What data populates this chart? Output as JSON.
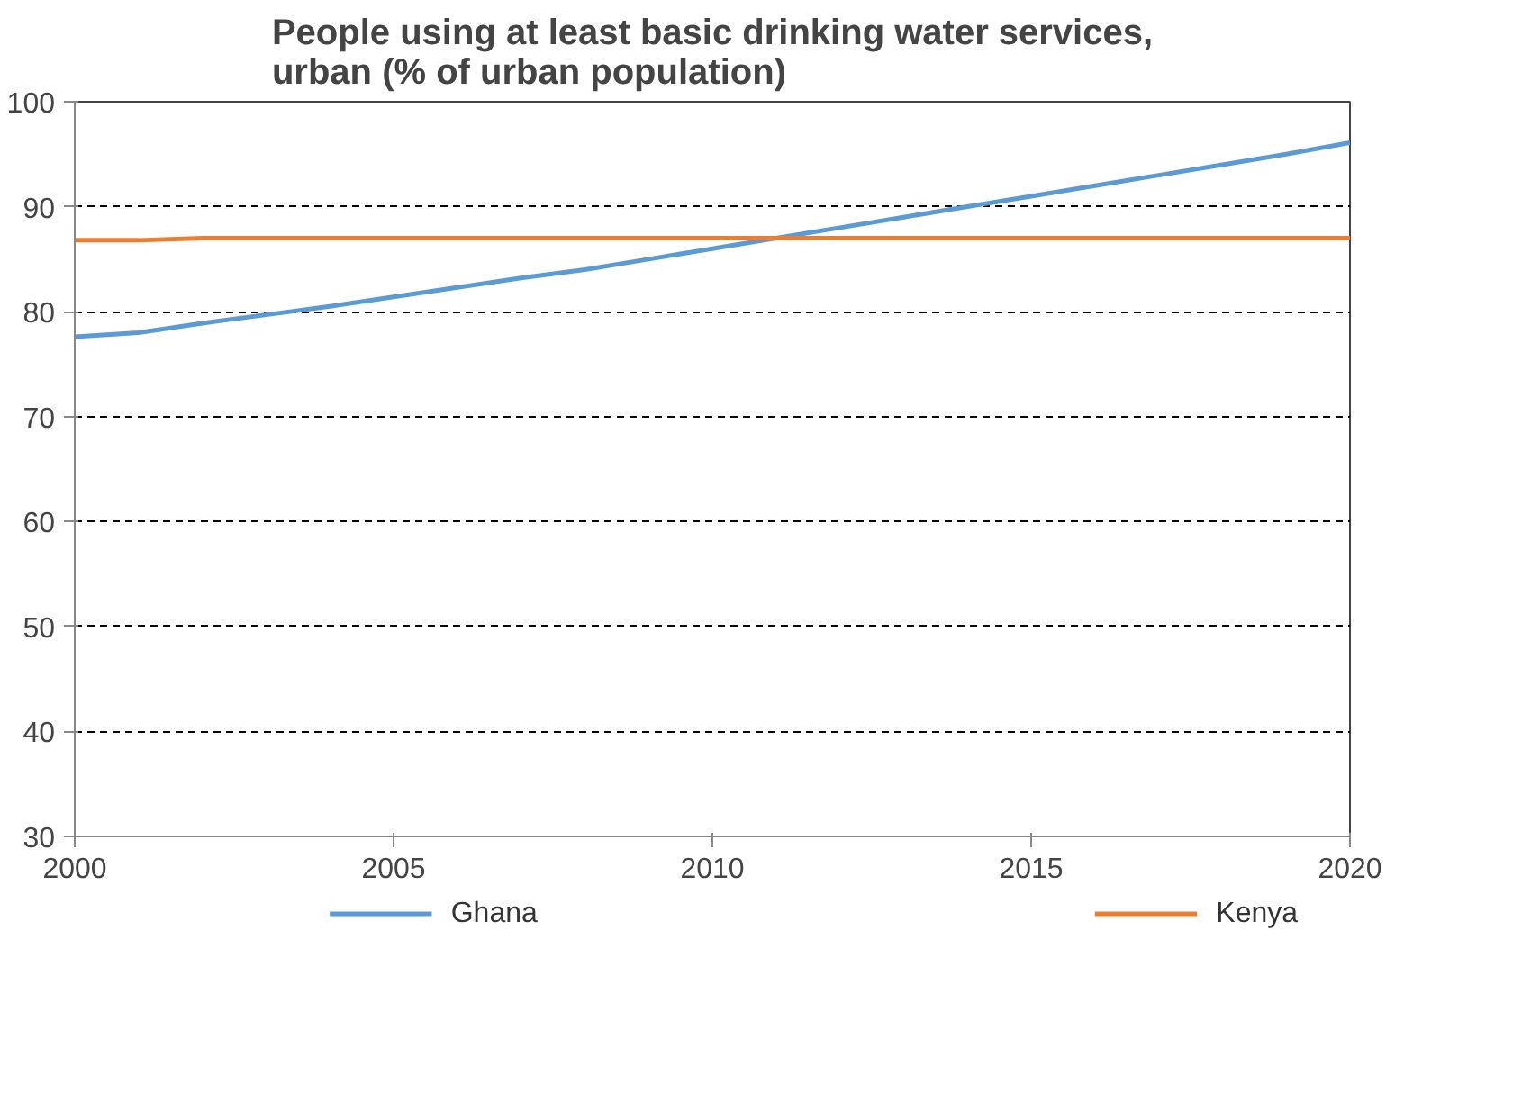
{
  "chart_data": {
    "type": "line",
    "title": "People using at least basic drinking water services,\nurban (% of urban population)",
    "x": [
      2000,
      2001,
      2002,
      2003,
      2004,
      2005,
      2006,
      2007,
      2008,
      2009,
      2010,
      2011,
      2012,
      2013,
      2014,
      2015,
      2016,
      2017,
      2018,
      2019,
      2020
    ],
    "series": [
      {
        "name": "Ghana",
        "color": "#5b9bd5",
        "values": [
          77.6,
          78.0,
          78.9,
          79.7,
          80.5,
          81.4,
          82.3,
          83.2,
          84.0,
          85.0,
          86.0,
          87.0,
          88.0,
          89.0,
          90.0,
          91.0,
          92.0,
          93.0,
          94.0,
          95.0,
          96.1
        ]
      },
      {
        "name": "Kenya",
        "color": "#ed7d31",
        "values": [
          86.8,
          86.8,
          87.0,
          87.0,
          87.0,
          87.0,
          87.0,
          87.0,
          87.0,
          87.0,
          87.0,
          87.0,
          87.0,
          87.0,
          87.0,
          87.0,
          87.0,
          87.0,
          87.0,
          87.0,
          87.0
        ]
      }
    ],
    "xlim": [
      2000,
      2020
    ],
    "xticks": [
      2000,
      2005,
      2010,
      2015,
      2020
    ],
    "ylim": [
      30,
      100
    ],
    "yticks": [
      30,
      40,
      50,
      60,
      70,
      80,
      90,
      100
    ],
    "grid": "y",
    "legend": "bottom",
    "line_style": "solid",
    "marker": "none"
  }
}
